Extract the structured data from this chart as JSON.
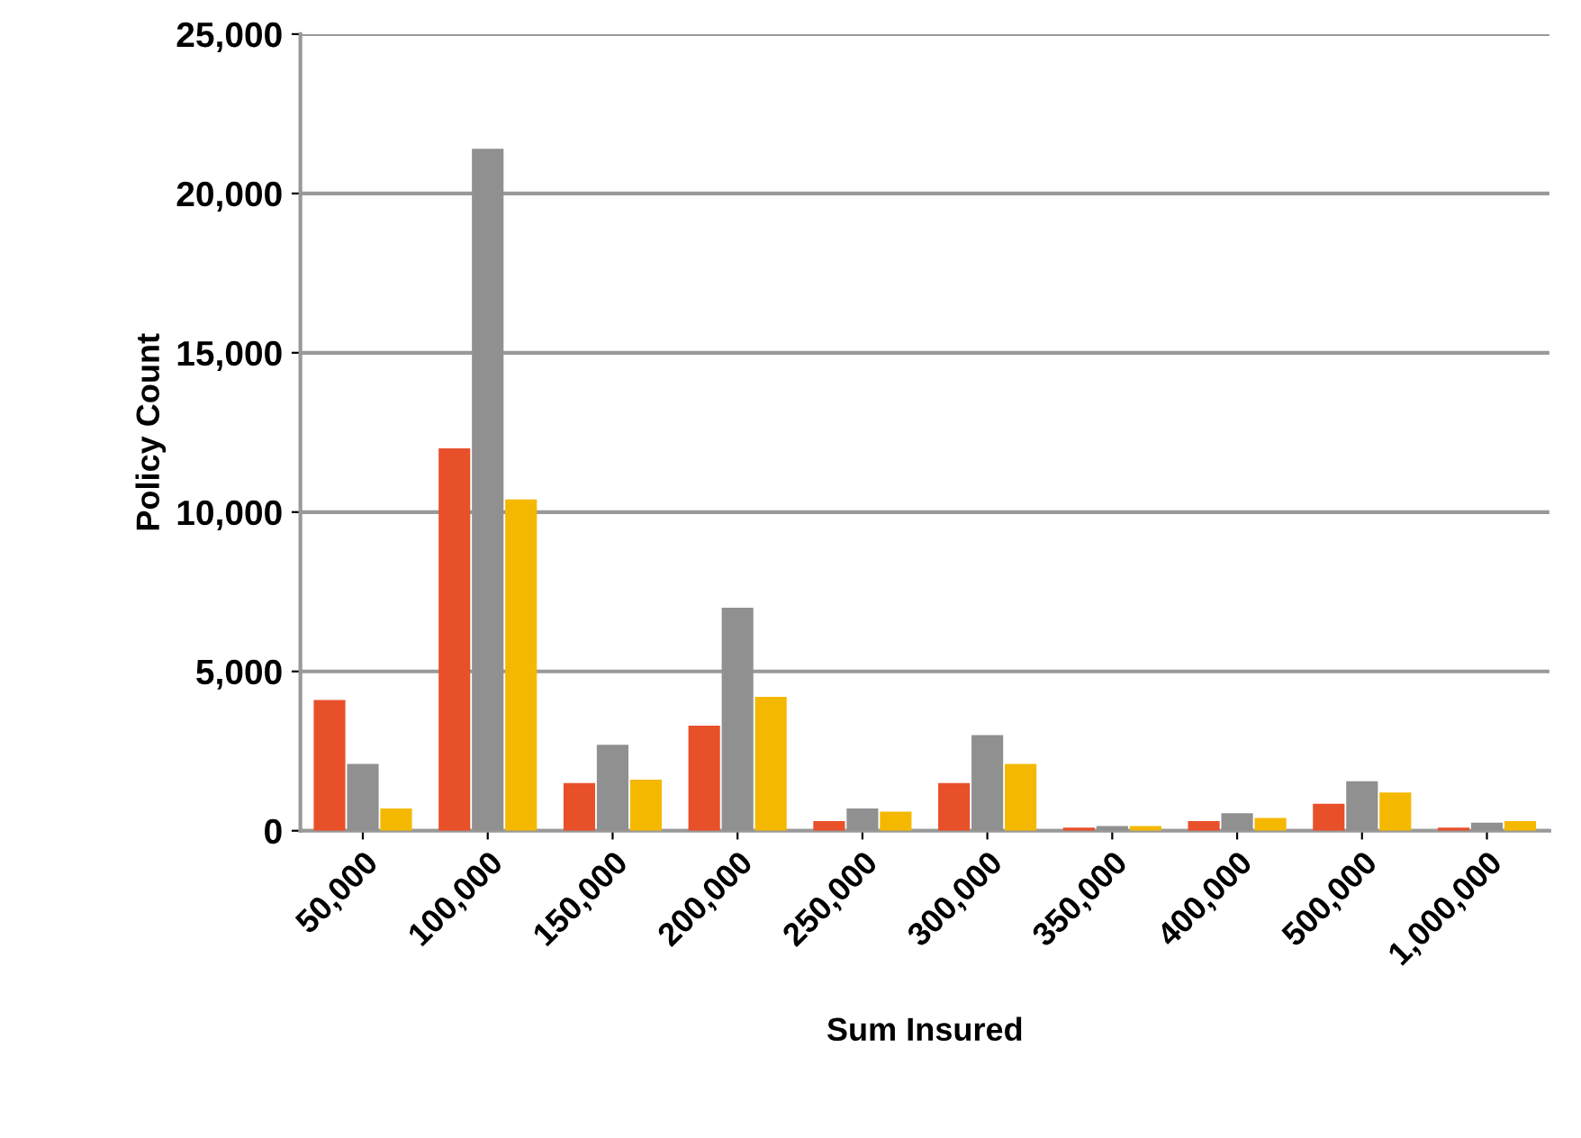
{
  "chart_data": {
    "type": "bar",
    "xlabel": "Sum Insured",
    "ylabel": "Policy Count",
    "categories": [
      "50,000",
      "100,000",
      "150,000",
      "200,000",
      "250,000",
      "300,000",
      "350,000",
      "400,000",
      "500,000",
      "1,000,000"
    ],
    "series": [
      {
        "color": "#e8502a",
        "values": [
          4100,
          12000,
          1500,
          3300,
          300,
          1500,
          100,
          300,
          850,
          100
        ]
      },
      {
        "color": "#909090",
        "values": [
          2100,
          21400,
          2700,
          7000,
          700,
          3000,
          150,
          550,
          1550,
          250
        ]
      },
      {
        "color": "#f5b800",
        "values": [
          700,
          10400,
          1600,
          4200,
          600,
          2100,
          150,
          400,
          1200,
          300
        ]
      }
    ],
    "ylim": [
      0,
      25000
    ],
    "yticks": [
      {
        "value": 0,
        "label": "0"
      },
      {
        "value": 5000,
        "label": "5,000"
      },
      {
        "value": 10000,
        "label": "10,000"
      },
      {
        "value": 15000,
        "label": "15,000"
      },
      {
        "value": 20000,
        "label": "20,000"
      },
      {
        "value": 25000,
        "label": "25,000"
      }
    ],
    "grid": "y"
  }
}
